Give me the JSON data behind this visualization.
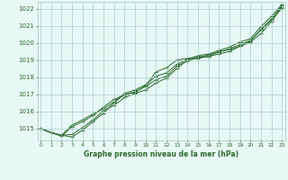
{
  "xlabel": "Graphe pression niveau de la mer (hPa)",
  "ylim": [
    1014.3,
    1022.4
  ],
  "xlim": [
    -0.3,
    23.3
  ],
  "yticks": [
    1015,
    1016,
    1017,
    1018,
    1019,
    1020,
    1021,
    1022
  ],
  "xticks": [
    0,
    1,
    2,
    3,
    4,
    5,
    6,
    7,
    8,
    9,
    10,
    11,
    12,
    13,
    14,
    15,
    16,
    17,
    18,
    19,
    20,
    21,
    22,
    23
  ],
  "bg_color": "#e8f8f5",
  "grid_color": "#aacfcf",
  "line_color": "#2d6a2d",
  "marker": "+",
  "series": [
    [
      1015.0,
      1014.75,
      1014.6,
      1014.5,
      1014.9,
      1015.4,
      1015.9,
      1016.5,
      1017.0,
      1017.1,
      1017.5,
      1018.3,
      1018.55,
      1019.0,
      1019.1,
      1019.15,
      1019.2,
      1019.35,
      1019.5,
      1019.8,
      1020.05,
      1020.55,
      1021.25,
      1022.05
    ],
    [
      1015.0,
      1014.75,
      1014.6,
      1014.65,
      1015.05,
      1015.5,
      1016.05,
      1016.35,
      1016.8,
      1017.05,
      1017.25,
      1017.65,
      1017.95,
      1018.5,
      1019.0,
      1019.1,
      1019.2,
      1019.5,
      1019.6,
      1019.8,
      1020.1,
      1020.8,
      1021.4,
      1022.1
    ],
    [
      1015.0,
      1014.75,
      1014.6,
      1015.2,
      1015.5,
      1015.85,
      1016.15,
      1016.55,
      1017.05,
      1017.25,
      1017.55,
      1018.05,
      1018.25,
      1018.75,
      1019.05,
      1019.25,
      1019.35,
      1019.55,
      1019.75,
      1020.05,
      1020.25,
      1020.95,
      1021.55,
      1022.25
    ],
    [
      1015.0,
      1014.75,
      1014.55,
      1015.1,
      1015.4,
      1015.75,
      1016.25,
      1016.7,
      1016.95,
      1017.15,
      1017.45,
      1017.85,
      1018.05,
      1018.65,
      1018.95,
      1019.15,
      1019.3,
      1019.45,
      1019.65,
      1019.9,
      1020.15,
      1020.75,
      1021.35,
      1022.2
    ]
  ]
}
